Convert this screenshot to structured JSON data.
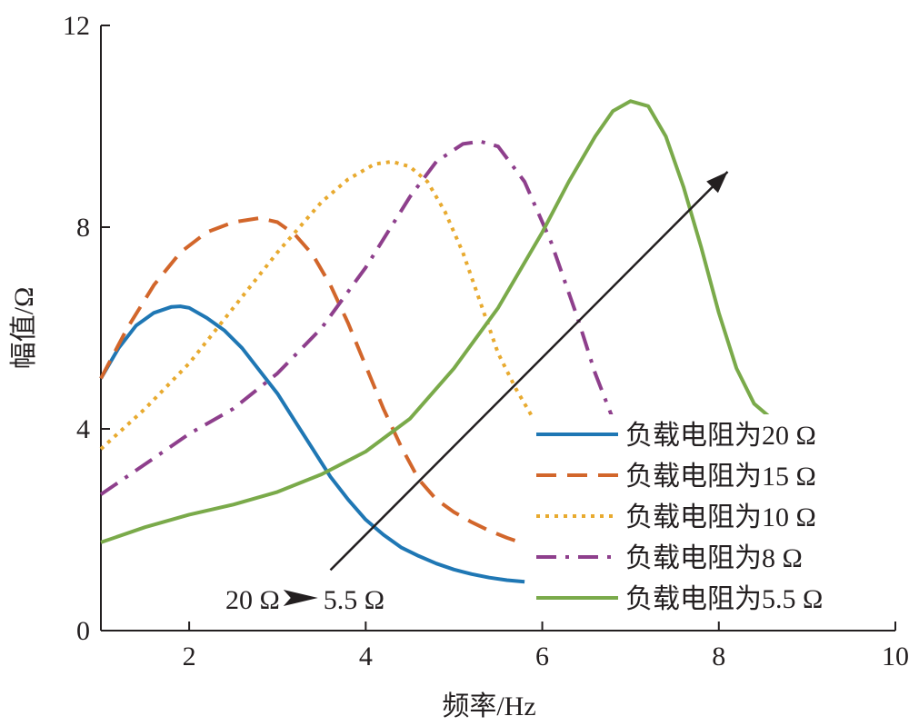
{
  "chart_data": {
    "type": "line",
    "xlabel": "频率/Hz",
    "ylabel": "幅值/Ω",
    "xlim": [
      1,
      10
    ],
    "ylim": [
      0,
      12
    ],
    "xticks": [
      2,
      4,
      6,
      8,
      10
    ],
    "yticks": [
      0,
      4,
      8,
      12
    ],
    "grid": false,
    "legend_position": "bottom-right",
    "series": [
      {
        "name": "负载电阻为20 Ω",
        "color": "#1f77b4",
        "dash": "solid",
        "x": [
          1.0,
          1.2,
          1.4,
          1.6,
          1.8,
          1.9,
          2.0,
          2.2,
          2.4,
          2.6,
          2.8,
          3.0,
          3.2,
          3.4,
          3.6,
          3.8,
          4.0,
          4.2,
          4.4,
          4.6,
          4.8,
          5.0,
          5.2,
          5.4,
          5.6,
          5.8
        ],
        "y": [
          5.0,
          5.6,
          6.05,
          6.3,
          6.42,
          6.43,
          6.4,
          6.2,
          5.95,
          5.6,
          5.15,
          4.7,
          4.15,
          3.6,
          3.05,
          2.6,
          2.2,
          1.9,
          1.65,
          1.48,
          1.33,
          1.21,
          1.12,
          1.05,
          1.0,
          0.97
        ]
      },
      {
        "name": "负载电阻为15 Ω",
        "color": "#d2662b",
        "dash": "dashed",
        "x": [
          1.0,
          1.3,
          1.6,
          1.9,
          2.2,
          2.5,
          2.8,
          3.0,
          3.2,
          3.4,
          3.6,
          3.8,
          4.0,
          4.2,
          4.4,
          4.6,
          4.8,
          5.0,
          5.2,
          5.4,
          5.6,
          5.8
        ],
        "y": [
          5.0,
          6.0,
          6.85,
          7.5,
          7.9,
          8.1,
          8.18,
          8.1,
          7.85,
          7.45,
          6.85,
          6.1,
          5.25,
          4.4,
          3.65,
          3.0,
          2.6,
          2.35,
          2.15,
          1.98,
          1.84,
          1.72
        ]
      },
      {
        "name": "负载电阻为10 Ω",
        "color": "#e8aa2f",
        "dash": "dotted",
        "x": [
          1.0,
          1.5,
          2.0,
          2.5,
          3.0,
          3.5,
          3.8,
          4.1,
          4.3,
          4.5,
          4.7,
          4.9,
          5.1,
          5.3,
          5.5,
          5.7,
          5.9
        ],
        "y": [
          3.6,
          4.4,
          5.3,
          6.4,
          7.5,
          8.5,
          8.95,
          9.25,
          9.3,
          9.2,
          8.9,
          8.3,
          7.5,
          6.5,
          5.5,
          4.8,
          4.2
        ]
      },
      {
        "name": "负载电阻为8 Ω",
        "color": "#8e3f8c",
        "dash": "dashdot",
        "x": [
          1.0,
          1.5,
          2.0,
          2.5,
          3.0,
          3.5,
          4.0,
          4.5,
          4.8,
          5.1,
          5.3,
          5.5,
          5.8,
          6.1,
          6.4,
          6.6,
          6.8
        ],
        "y": [
          2.7,
          3.3,
          3.9,
          4.4,
          5.1,
          6.0,
          7.2,
          8.6,
          9.3,
          9.65,
          9.7,
          9.6,
          8.9,
          7.7,
          6.2,
          5.1,
          4.2
        ]
      },
      {
        "name": "负载电阻为5.5 Ω",
        "color": "#7aaa4a",
        "dash": "solid",
        "x": [
          1.0,
          1.5,
          2.0,
          2.5,
          3.0,
          3.5,
          4.0,
          4.5,
          5.0,
          5.5,
          6.0,
          6.3,
          6.6,
          6.8,
          7.0,
          7.2,
          7.4,
          7.6,
          7.8,
          8.0,
          8.2,
          8.4,
          8.6
        ],
        "y": [
          1.75,
          2.05,
          2.3,
          2.5,
          2.75,
          3.1,
          3.55,
          4.2,
          5.2,
          6.4,
          7.9,
          8.9,
          9.8,
          10.3,
          10.5,
          10.4,
          9.8,
          8.8,
          7.6,
          6.3,
          5.2,
          4.5,
          4.2
        ]
      }
    ],
    "annotations": [
      {
        "text": "20 Ω ",
        "arrow_text": "5.5 Ω"
      }
    ],
    "arrow": {
      "from": [
        3.6,
        1.2
      ],
      "to": [
        8.1,
        9.1
      ]
    }
  }
}
